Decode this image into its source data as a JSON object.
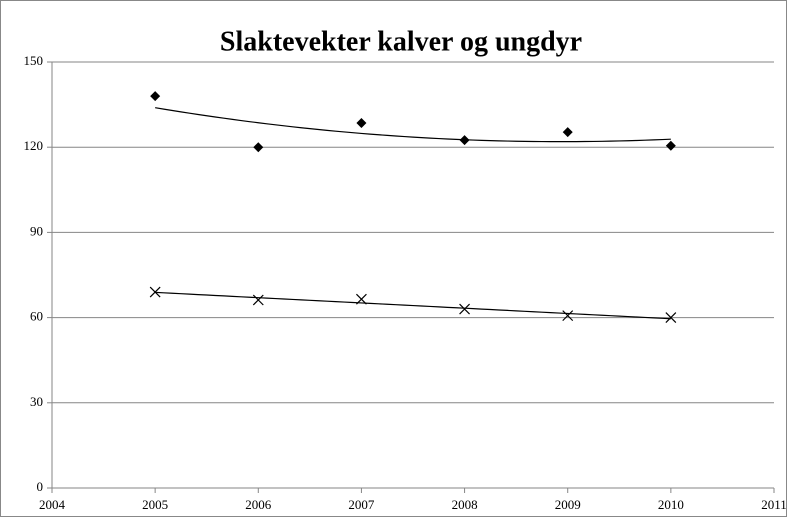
{
  "chart_data": {
    "type": "scatter",
    "title": "Slaktevekter kalver og ungdyr",
    "x": [
      2005,
      2006,
      2007,
      2008,
      2009,
      2010
    ],
    "series": [
      {
        "marker": "diamond",
        "color": "#000000",
        "trendline": "polynomial",
        "values": [
          138,
          120,
          128.5,
          122.5,
          125.3,
          120.5
        ]
      },
      {
        "marker": "x",
        "color": "#000000",
        "trendline": "linear",
        "values": [
          69,
          66.2,
          66.5,
          63,
          60.7,
          60
        ]
      }
    ],
    "xlim": [
      2004,
      2011
    ],
    "xticks": [
      2004,
      2005,
      2006,
      2007,
      2008,
      2009,
      2010,
      2011
    ],
    "ylim": [
      0,
      150
    ],
    "yticks": [
      0,
      30,
      60,
      90,
      120,
      150
    ],
    "grid": true
  }
}
